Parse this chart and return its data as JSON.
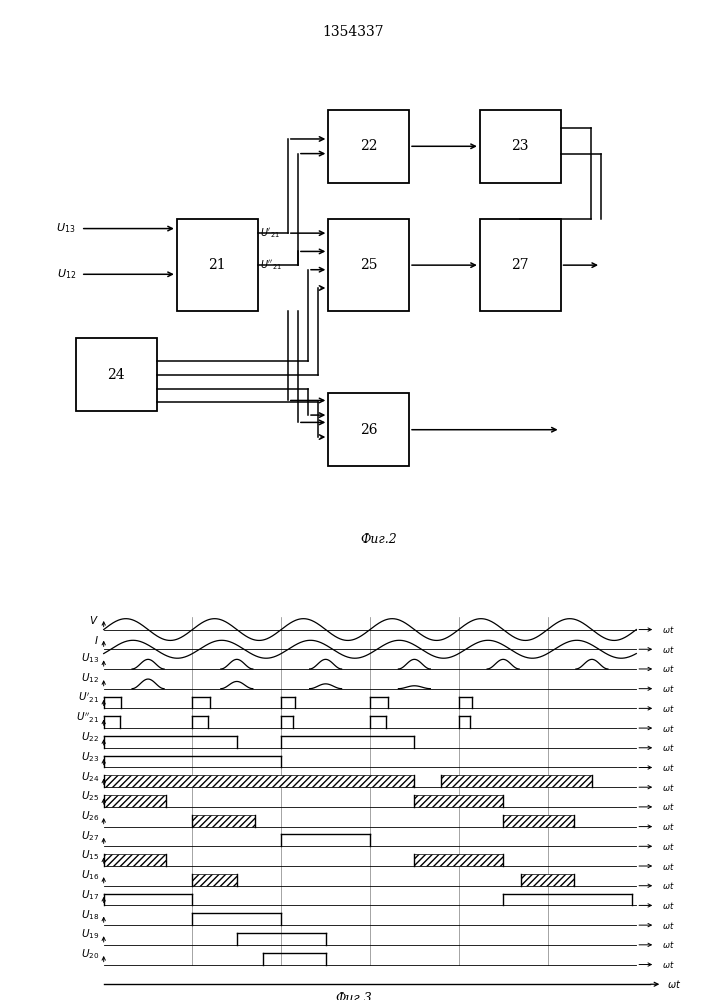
{
  "title": "1354337",
  "fig2_label": "Фиг.2",
  "fig3_label": "Фиг.3",
  "bg_color": "#ffffff"
}
